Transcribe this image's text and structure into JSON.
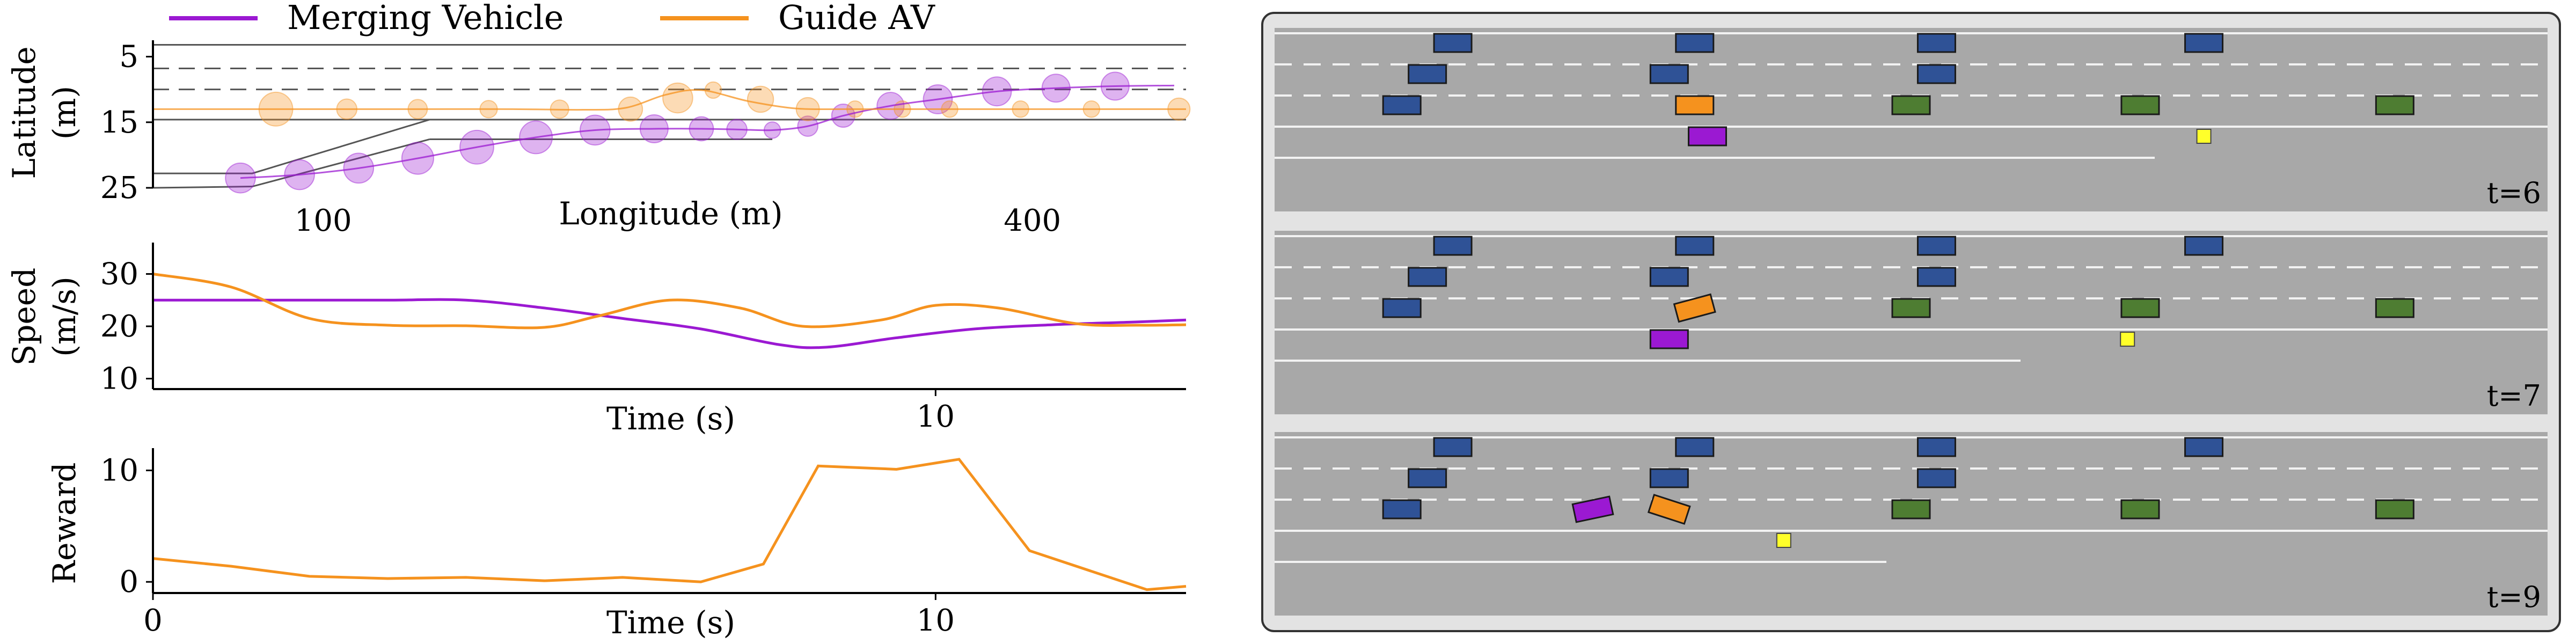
{
  "colors": {
    "merging": "#9b19d2",
    "guide": "#f5921e",
    "road": "#a8a8a8",
    "panel_bg": "#e3e3e3",
    "blue_car": "#2f5296",
    "green_car": "#4e7d32",
    "goal": "#ffff2a"
  },
  "chart_data": [
    {
      "type": "line",
      "id": "trajectory",
      "xlabel": "Longitude (m)",
      "ylabel": "Latitude\n(m)",
      "xlim": [
        28,
        465
      ],
      "ylim": [
        25,
        2.5
      ],
      "xticks": [
        100,
        400
      ],
      "yticks": [
        5,
        15,
        25
      ],
      "legend": {
        "placement": "top",
        "entries": [
          "Merging Vehicle",
          "Guide AV"
        ]
      },
      "series": [
        {
          "name": "Merging Vehicle",
          "x": [
            65,
            90,
            115,
            140,
            165,
            190,
            215,
            240,
            260,
            275,
            290,
            305,
            320,
            340,
            360,
            385,
            410,
            435,
            460
          ],
          "y": [
            23.5,
            23.0,
            22.0,
            20.5,
            18.8,
            17.3,
            16.2,
            16.0,
            16.0,
            16.1,
            16.2,
            15.6,
            14.0,
            12.5,
            11.5,
            10.3,
            9.8,
            9.5,
            9.4
          ]
        },
        {
          "name": "Guide AV",
          "x": [
            28,
            60,
            100,
            140,
            180,
            210,
            228,
            245,
            260,
            280,
            300,
            320,
            340,
            360,
            380,
            400,
            430,
            465
          ],
          "y": [
            13.0,
            13.0,
            13.0,
            13.0,
            13.0,
            13.1,
            12.8,
            10.8,
            10.1,
            11.8,
            12.9,
            13.0,
            13.0,
            13.0,
            13.0,
            13.0,
            13.0,
            13.0
          ]
        }
      ],
      "markers": [
        {
          "series": "Merging Vehicle",
          "x": [
            65,
            90,
            115,
            140,
            165,
            190,
            215,
            240,
            260,
            275,
            290,
            305,
            320,
            340,
            360,
            385,
            410,
            435
          ],
          "y": [
            23.5,
            23.0,
            22.0,
            20.5,
            18.8,
            17.3,
            16.2,
            16.0,
            16.0,
            16.1,
            16.2,
            15.6,
            14.0,
            12.5,
            11.5,
            10.3,
            9.8,
            9.5
          ],
          "size": [
            2.2,
            2.2,
            2.2,
            2.4,
            2.6,
            2.5,
            2.2,
            2.0,
            1.6,
            1.2,
            0.8,
            1.2,
            1.5,
            1.9,
            2.1,
            2.1,
            2.0,
            2.0
          ]
        },
        {
          "series": "Guide AV",
          "x": [
            80,
            110,
            140,
            170,
            200,
            230,
            250,
            265,
            285,
            305,
            325,
            345,
            365,
            395,
            425,
            462
          ],
          "y": [
            13.0,
            13.0,
            13.0,
            13.0,
            13.0,
            13.0,
            11.3,
            10.1,
            11.5,
            13.0,
            13.0,
            13.0,
            13.0,
            13.0,
            13.0,
            13.0
          ],
          "size": [
            2.6,
            1.2,
            1.1,
            0.9,
            1.0,
            1.6,
            2.2,
            0.8,
            1.8,
            1.5,
            0.8,
            0.8,
            0.8,
            0.8,
            0.8,
            1.4
          ]
        }
      ]
    },
    {
      "type": "line",
      "id": "speed",
      "xlabel": "Time (s)",
      "ylabel": "Speed\n(m/s)",
      "xlim": [
        0,
        13.2
      ],
      "ylim": [
        8,
        36
      ],
      "xticks": [
        10
      ],
      "yticks": [
        10,
        20,
        30
      ],
      "series": [
        {
          "name": "Merging Vehicle",
          "x": [
            0,
            1,
            2,
            3,
            4,
            5,
            6,
            7,
            8,
            8.6,
            9.5,
            10.5,
            11.5,
            12.5,
            13.2
          ],
          "y": [
            25,
            25,
            25,
            25,
            25,
            23.5,
            21.5,
            19.5,
            16.5,
            16.0,
            17.8,
            19.5,
            20.3,
            20.8,
            21.2
          ]
        },
        {
          "name": "Guide AV",
          "x": [
            0,
            1,
            2,
            3,
            4,
            5,
            5.7,
            6.6,
            7.5,
            8.3,
            9.3,
            10.0,
            10.8,
            11.8,
            12.6,
            13.2
          ],
          "y": [
            30,
            27.5,
            21.5,
            20.2,
            20.1,
            19.8,
            22.0,
            25.0,
            23.5,
            20.0,
            21.2,
            24.0,
            23.5,
            20.5,
            20.2,
            20.3
          ]
        }
      ]
    },
    {
      "type": "line",
      "id": "reward",
      "xlabel": "Time (s)",
      "ylabel": "Reward",
      "xlim": [
        0,
        13.2
      ],
      "ylim": [
        -1,
        12
      ],
      "xticks": [
        0,
        10
      ],
      "yticks": [
        0,
        10
      ],
      "series": [
        {
          "name": "Guide AV",
          "x": [
            0,
            1,
            2,
            3,
            4,
            5,
            6,
            7,
            7.8,
            8.5,
            9.5,
            10.3,
            11.2,
            12.7,
            13.2
          ],
          "y": [
            2.1,
            1.4,
            0.5,
            0.3,
            0.4,
            0.1,
            0.4,
            0.0,
            1.6,
            10.4,
            10.1,
            11.0,
            2.8,
            -0.7,
            -0.4
          ]
        }
      ]
    }
  ],
  "snapshots": [
    {
      "label": "t=6",
      "lanes": 5,
      "blue": [
        [
          14,
          0
        ],
        [
          33,
          0
        ],
        [
          52,
          0
        ],
        [
          73,
          0
        ],
        [
          12,
          1
        ],
        [
          31,
          1
        ],
        [
          52,
          1
        ],
        [
          10,
          2
        ]
      ],
      "green": [
        [
          50,
          2
        ],
        [
          68,
          2
        ],
        [
          88,
          2
        ]
      ],
      "guide": [
        [
          33,
          2,
          0
        ]
      ],
      "merging": [
        [
          34,
          3,
          0
        ]
      ],
      "goal": [
        [
          73,
          3
        ]
      ]
    },
    {
      "label": "t=7",
      "lanes": 5,
      "blue": [
        [
          14,
          0
        ],
        [
          33,
          0
        ],
        [
          52,
          0
        ],
        [
          73,
          0
        ],
        [
          12,
          1
        ],
        [
          31,
          1
        ],
        [
          52,
          1
        ],
        [
          10,
          2
        ]
      ],
      "green": [
        [
          50,
          2
        ],
        [
          68,
          2
        ],
        [
          88,
          2
        ]
      ],
      "guide": [
        [
          33,
          2,
          -15
        ]
      ],
      "merging": [
        [
          31,
          3,
          0
        ]
      ],
      "goal": [
        [
          67,
          3
        ]
      ]
    },
    {
      "label": "t=9",
      "lanes": 5,
      "blue": [
        [
          14,
          0
        ],
        [
          33,
          0
        ],
        [
          52,
          0
        ],
        [
          73,
          0
        ],
        [
          12,
          1
        ],
        [
          31,
          1
        ],
        [
          52,
          1
        ],
        [
          10,
          2
        ]
      ],
      "green": [
        [
          50,
          2
        ],
        [
          68,
          2
        ],
        [
          88,
          2
        ]
      ],
      "guide": [
        [
          31,
          2,
          18
        ]
      ],
      "merging": [
        [
          25,
          2,
          -12
        ]
      ],
      "goal": [
        [
          40,
          3
        ]
      ]
    }
  ]
}
